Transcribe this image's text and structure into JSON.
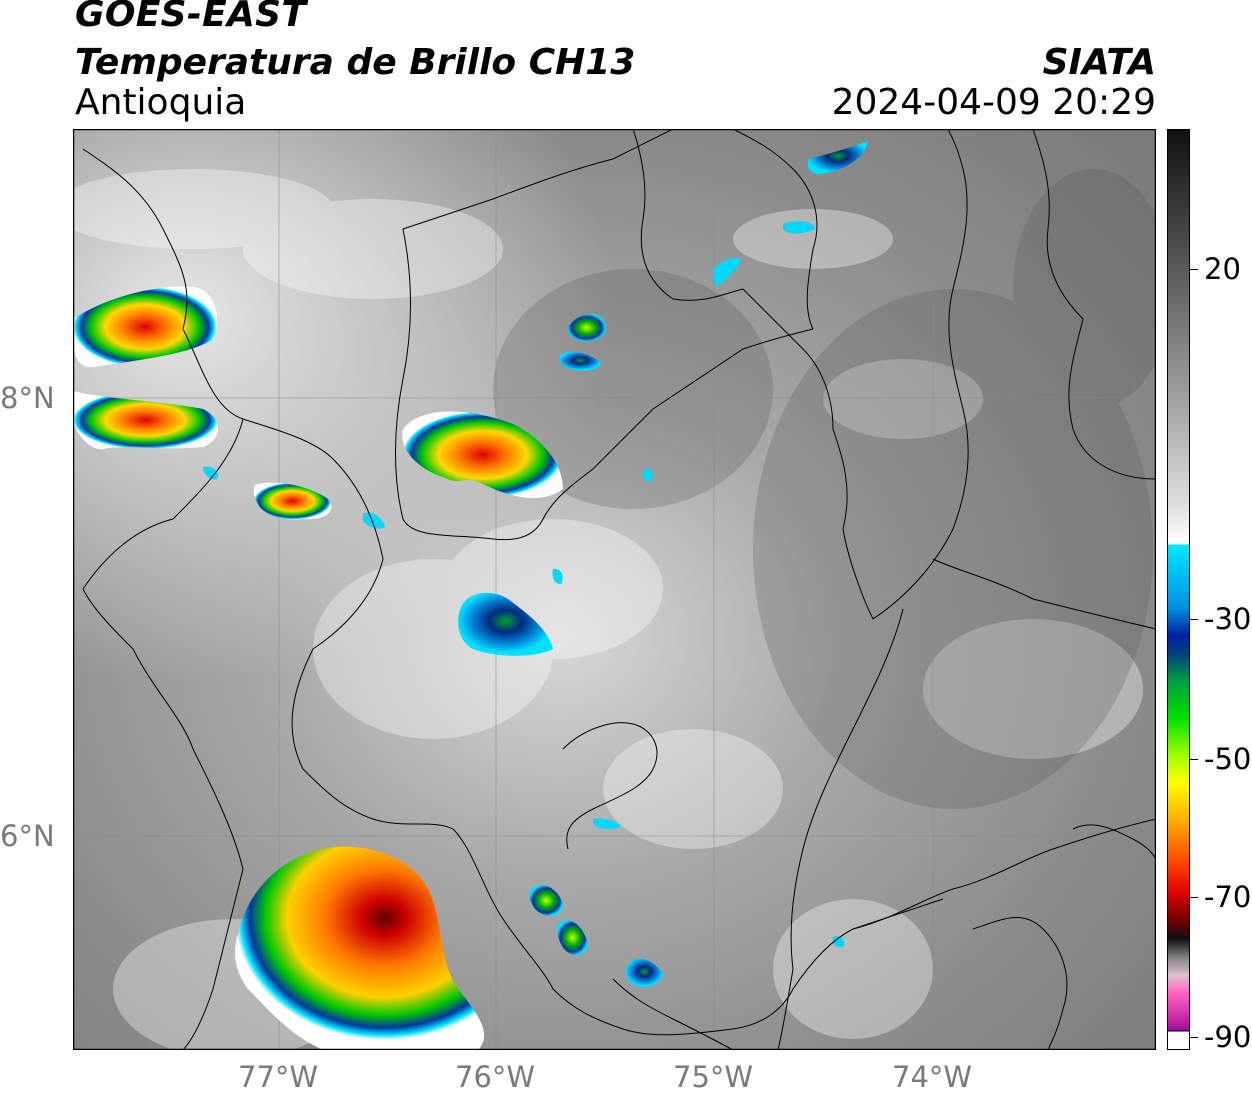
{
  "header": {
    "satellite": "GOES-EAST",
    "product": "Temperatura de Brillo CH13",
    "region": "Antioquia",
    "organization": "SIATA",
    "datetime": "2024-04-09 20:29"
  },
  "map": {
    "lat_labels": [
      "8°N",
      "6°N"
    ],
    "lon_labels": [
      "77°W",
      "76°W",
      "75°W",
      "74°W"
    ]
  },
  "colorbar": {
    "ticks": [
      "20",
      "-30",
      "-50",
      "-70",
      "-90"
    ],
    "unit_hint": "brightness-temperature"
  },
  "colors": {
    "background_gray": "#8a8a8a",
    "cold_cloud_red": "#e00000",
    "cold_cloud_yellow": "#ffd800",
    "cold_cloud_green": "#00c800",
    "cold_cloud_blue": "#0038a0",
    "cyan": "#00e0ff",
    "borders": "#000000"
  }
}
